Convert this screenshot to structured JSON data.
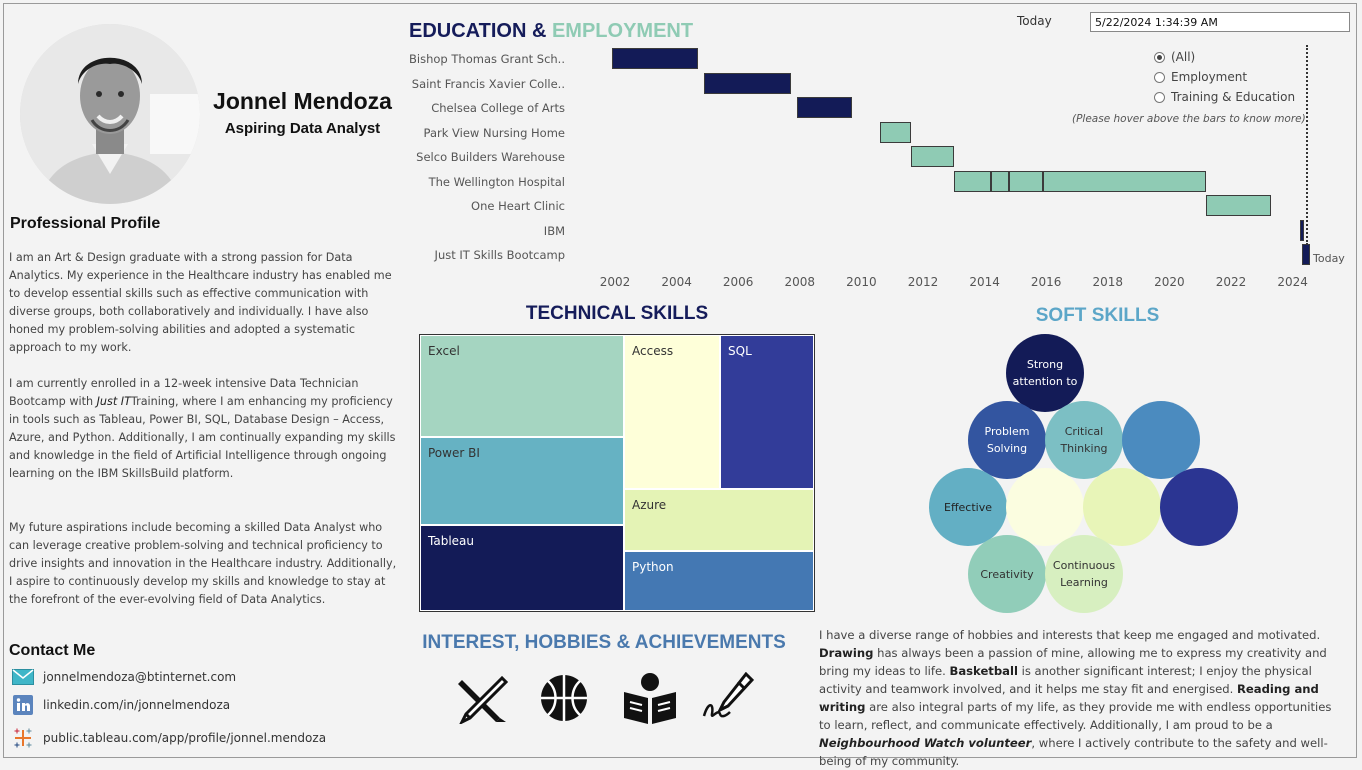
{
  "profile": {
    "name": "Jonnel Mendoza",
    "role": "Aspiring Data Analyst",
    "section_title": "Professional Profile",
    "paragraphs": {
      "p1": "I am an Art & Design graduate with a strong passion for Data Analytics. My experience in the Healthcare industry has enabled me to develop essential skills such as effective communication with diverse groups, both collaboratively and individually. I have also honed my problem-solving abilities and adopted a systematic approach to my work.",
      "p2_a": "I am currently enrolled in a 12-week intensive Data Technician Bootcamp with ",
      "p2_em": "Just IT",
      "p2_b": "Training, where I am enhancing my proficiency in tools such as Tableau, Power BI, SQL, Database Design – Access, Azure, and Python. Additionally, I am continually expanding my skills and knowledge in the field of Artificial Intelligence through ongoing learning on the IBM SkillsBuild platform.",
      "p3": "My future aspirations include becoming a skilled Data Analyst who can leverage creative problem-solving and technical proficiency to drive insights and innovation in the Healthcare industry. Additionally, I aspire to continuously develop my skills and knowledge to stay at the forefront of the ever-evolving field of Data Analytics."
    }
  },
  "contact": {
    "title": "Contact Me",
    "email": "jonnelmendoza@btinternet.com",
    "linkedin": "linkedin.com/in/jonnelmendoza",
    "tableau": "public.tableau.com/app/profile/jonnel.mendoza",
    "icons": [
      "email-icon",
      "linkedin-icon",
      "tableau-icon"
    ]
  },
  "timeline": {
    "title_part1": "EDUCATION",
    "title_amp": " & ",
    "title_part2": "EMPLOYMENT",
    "today_label": "Today",
    "today_value": "5/22/2024 1:34:39 AM",
    "filter_options": [
      "(All)",
      "Employment",
      "Training & Education"
    ],
    "filter_selected": "(All)",
    "hint": "(Please hover above the bars to know more)",
    "today_marker_label": "Today",
    "colors": {
      "education": "#131b57",
      "employment": "#8fcbb4",
      "marker": "#1f2a6b"
    }
  },
  "chart_data": {
    "type": "gantt",
    "x_ticks": [
      "2002",
      "2004",
      "2006",
      "2008",
      "2010",
      "2012",
      "2014",
      "2016",
      "2018",
      "2020",
      "2022",
      "2024"
    ],
    "xlim": [
      2001.6,
      2024.7
    ],
    "rows": [
      {
        "label": "Bishop Thomas Grant Sch..",
        "segments": [
          {
            "start": 2001.9,
            "end": 2004.7,
            "kind": "education"
          }
        ]
      },
      {
        "label": "Saint Francis Xavier Colle..",
        "segments": [
          {
            "start": 2004.9,
            "end": 2007.7,
            "kind": "education"
          }
        ]
      },
      {
        "label": "Chelsea College of Arts",
        "segments": [
          {
            "start": 2007.9,
            "end": 2009.7,
            "kind": "education"
          }
        ]
      },
      {
        "label": "Park View Nursing Home",
        "segments": [
          {
            "start": 2010.6,
            "end": 2011.6,
            "kind": "employment"
          }
        ]
      },
      {
        "label": "Selco Builders Warehouse",
        "segments": [
          {
            "start": 2011.6,
            "end": 2013.0,
            "kind": "employment"
          }
        ]
      },
      {
        "label": "The Wellington Hospital",
        "segments": [
          {
            "start": 2013.0,
            "end": 2014.2,
            "kind": "employment"
          },
          {
            "start": 2014.2,
            "end": 2014.8,
            "kind": "employment"
          },
          {
            "start": 2014.8,
            "end": 2015.9,
            "kind": "employment"
          },
          {
            "start": 2015.9,
            "end": 2021.2,
            "kind": "employment"
          }
        ]
      },
      {
        "label": "One Heart Clinic",
        "segments": [
          {
            "start": 2021.2,
            "end": 2023.3,
            "kind": "employment"
          }
        ]
      },
      {
        "label": "IBM",
        "segments": [
          {
            "start": 2024.25,
            "end": 2024.3,
            "kind": "education"
          }
        ]
      },
      {
        "label": "Just IT Skills Bootcamp",
        "segments": [
          {
            "start": 2024.3,
            "end": 2024.55,
            "kind": "education"
          }
        ]
      }
    ],
    "today": 2024.39
  },
  "tech": {
    "title": "TECHNICAL SKILLS",
    "items": [
      "Excel",
      "Access",
      "SQL",
      "Power BI",
      "Azure",
      "Tableau",
      "Python"
    ],
    "colors": [
      "#a5d5c1",
      "#feffd9",
      "#323c99",
      "#66b2c3",
      "#e4f3b5",
      "#131b57",
      "#4478b3"
    ]
  },
  "soft": {
    "title": "SOFT SKILLS",
    "bubbles": [
      {
        "label": "Strong attention to",
        "color": "#131b57",
        "text": "#ffffff"
      },
      {
        "label": "Problem Solving",
        "color": "#3355a0",
        "text": "#ffffff"
      },
      {
        "label": "Critical Thinking",
        "color": "#7cbfc4",
        "text": "#333333"
      },
      {
        "label": "",
        "color": "#4b8bbf",
        "text": "#ffffff"
      },
      {
        "label": "Effective",
        "color": "#63afc4",
        "text": "#222222"
      },
      {
        "label": "",
        "color": "#fbfde0",
        "text": "#222222"
      },
      {
        "label": "",
        "color": "#e8f5b8",
        "text": "#222222"
      },
      {
        "label": "",
        "color": "#2b3592",
        "text": "#ffffff"
      },
      {
        "label": "Creativity",
        "color": "#91cdb9",
        "text": "#333333"
      },
      {
        "label": "Continuous Learning",
        "color": "#d7efc0",
        "text": "#333333"
      }
    ]
  },
  "interests": {
    "title": "INTEREST, HOBBIES & ACHIEVEMENTS",
    "icons": [
      "drawing-icon",
      "basketball-icon",
      "reading-icon",
      "writing-icon"
    ],
    "t1": "I have a diverse range of hobbies and interests that keep me engaged and motivated. ",
    "b1": "Drawing",
    "t2": " has always been a passion of mine, allowing me to express my creativity and bring my ideas to life. ",
    "b2": "Basketball",
    "t3": " is another significant interest; I enjoy the physical activity and teamwork involved, and it helps me stay fit and energised. ",
    "b3": "Reading and writing",
    "t4": " are also integral parts of my life, as they provide me with endless opportunities to learn, reflect, and communicate effectively. Additionally, I am proud to be a ",
    "b4": "Neighbourhood Watch volunteer",
    "t5": ", where I actively contribute to the safety and well-being of my community."
  }
}
